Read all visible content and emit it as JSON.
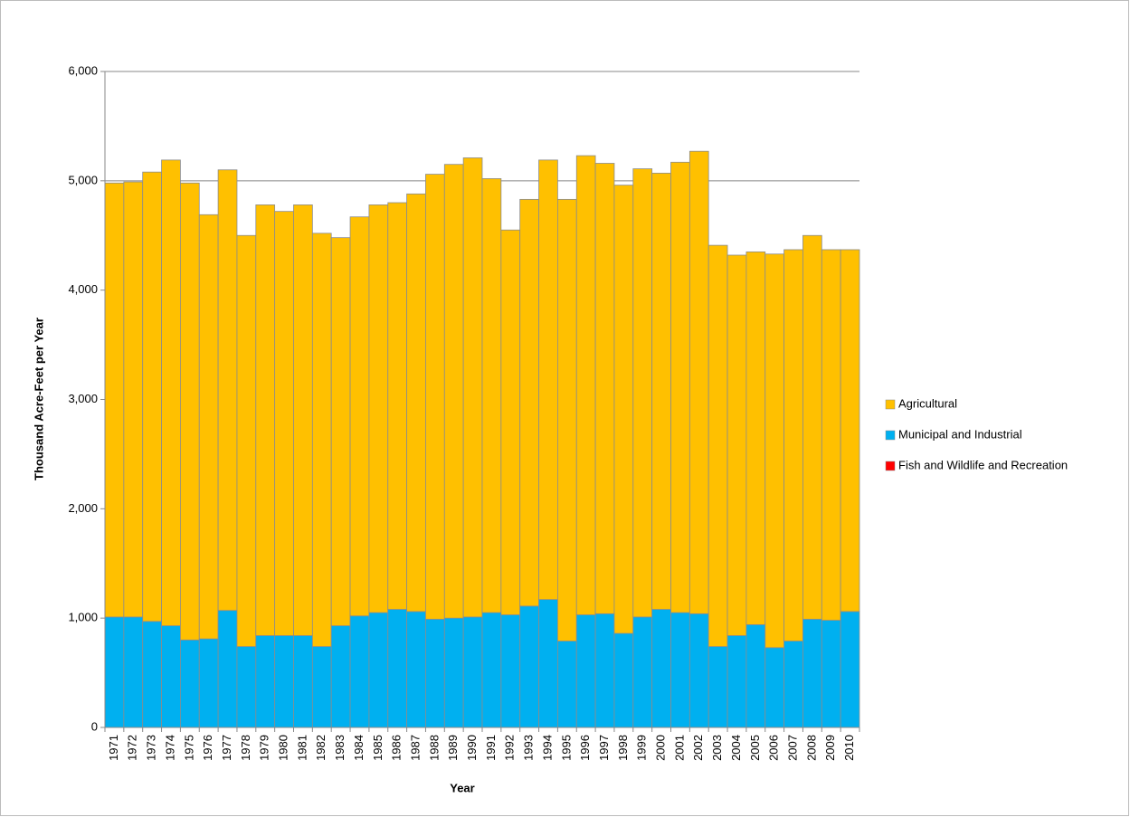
{
  "chart_data": {
    "type": "stacked-bar",
    "xlabel": "Year",
    "ylabel": "Thousand Acre-Feet per Year",
    "categories": [
      "1971",
      "1972",
      "1973",
      "1974",
      "1975",
      "1976",
      "1977",
      "1978",
      "1979",
      "1980",
      "1981",
      "1982",
      "1983",
      "1984",
      "1985",
      "1986",
      "1987",
      "1988",
      "1989",
      "1990",
      "1991",
      "1992",
      "1993",
      "1994",
      "1995",
      "1996",
      "1997",
      "1998",
      "1999",
      "2000",
      "2001",
      "2002",
      "2003",
      "2004",
      "2005",
      "2006",
      "2007",
      "2008",
      "2009",
      "2010"
    ],
    "series": [
      {
        "name": "Agricultural",
        "color": "#ffc000",
        "values": [
          3970,
          3980,
          4110,
          4260,
          4180,
          3880,
          4030,
          3760,
          3940,
          3880,
          3940,
          3780,
          3550,
          3650,
          3730,
          3720,
          3820,
          4070,
          4150,
          4200,
          3970,
          3520,
          3720,
          4020,
          4040,
          4200,
          4120,
          4100,
          4100,
          3990,
          4120,
          4230,
          3670,
          3480,
          3410,
          3600,
          3580,
          3510,
          3390,
          3310
        ]
      },
      {
        "name": "Municipal and Industrial",
        "color": "#00b0f0",
        "values": [
          1010,
          1010,
          970,
          930,
          800,
          810,
          1070,
          740,
          840,
          840,
          840,
          740,
          930,
          1020,
          1050,
          1080,
          1060,
          990,
          1000,
          1010,
          1050,
          1030,
          1110,
          1170,
          790,
          1030,
          1040,
          860,
          1010,
          1080,
          1050,
          1040,
          740,
          840,
          940,
          730,
          790,
          990,
          980,
          1060
        ]
      },
      {
        "name": "Fish and Wildlife and Recreation",
        "color": "#ff0000",
        "values": [
          0,
          0,
          0,
          0,
          0,
          0,
          0,
          0,
          0,
          0,
          0,
          0,
          0,
          0,
          0,
          0,
          0,
          0,
          0,
          0,
          0,
          0,
          0,
          0,
          0,
          0,
          0,
          0,
          0,
          0,
          0,
          0,
          0,
          0,
          0,
          0,
          0,
          0,
          0,
          0
        ]
      }
    ],
    "ylim": [
      0,
      6000
    ],
    "yticks": [
      0,
      {
        "value": 1000,
        "label": "1,000"
      },
      {
        "value": 2000,
        "label": "2,000"
      },
      {
        "value": 3000,
        "label": "3,000"
      },
      {
        "value": 4000,
        "label": "4,000"
      },
      {
        "value": 5000,
        "label": "5,000"
      },
      {
        "value": 6000,
        "label": "6,000"
      }
    ],
    "grid": true,
    "legend": "right"
  }
}
